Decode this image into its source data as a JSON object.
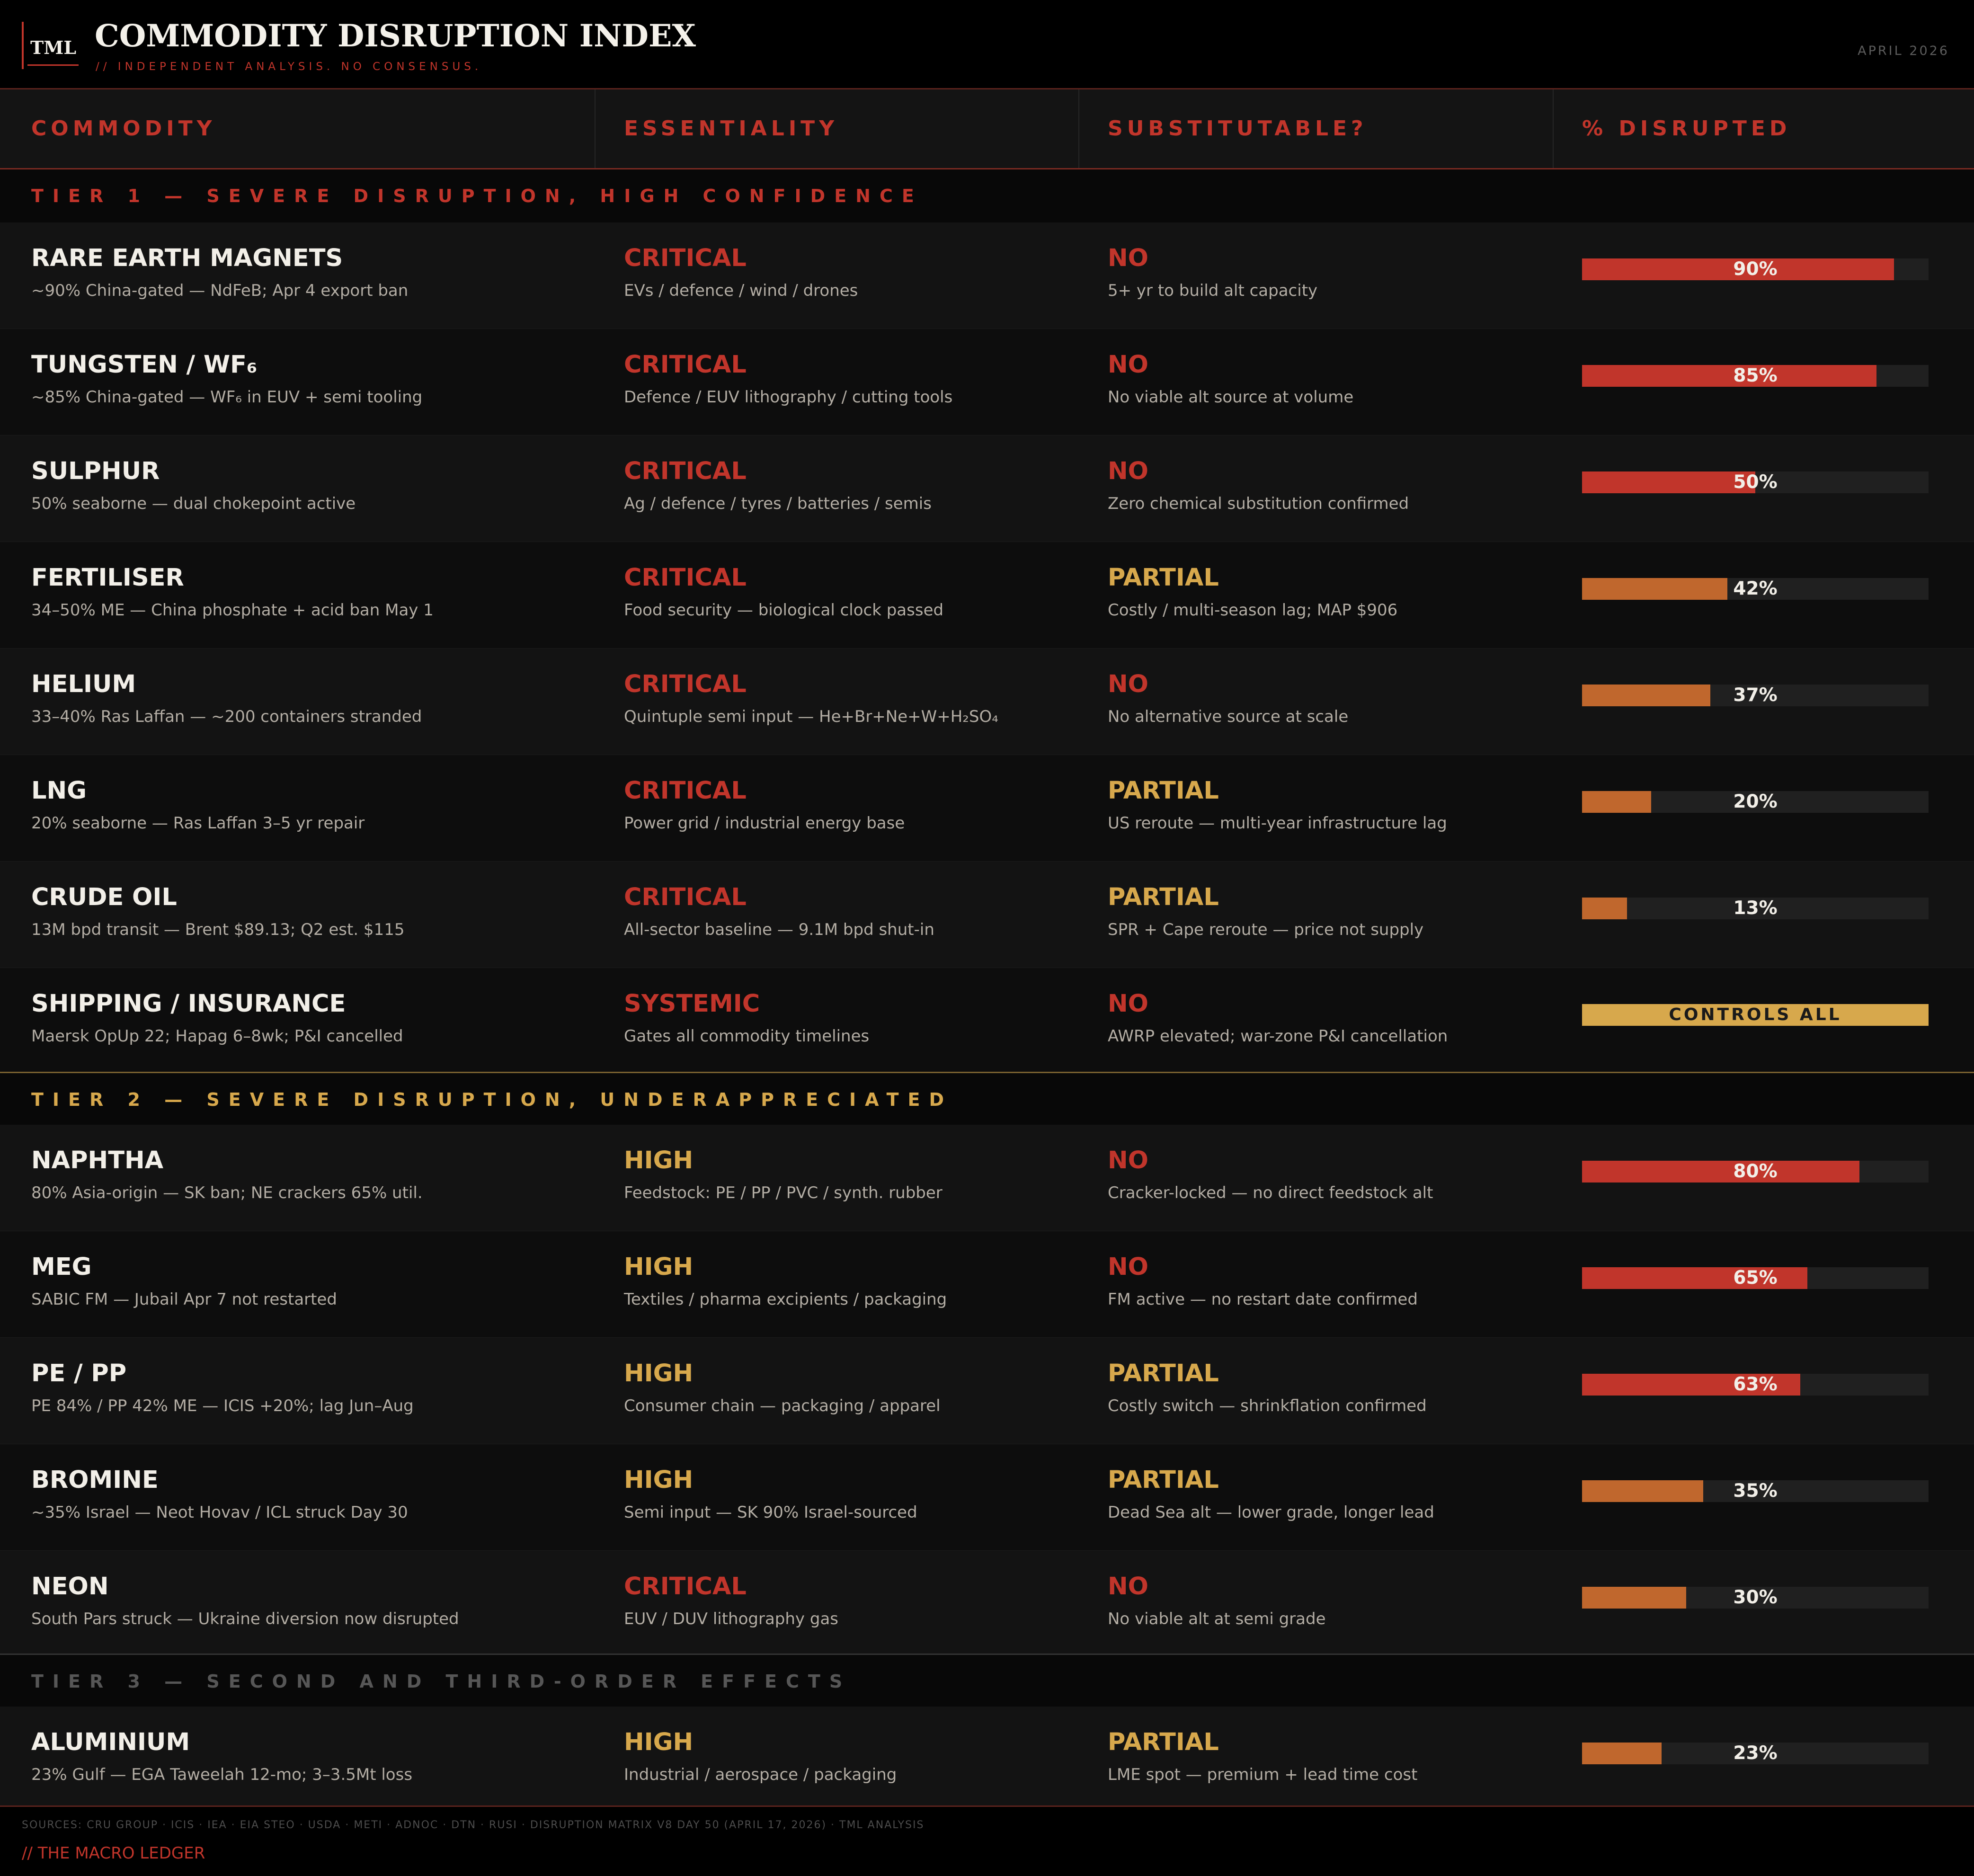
{
  "header": {
    "logo": "TML",
    "title": "COMMODITY DISRUPTION INDEX",
    "subtitle": "// INDEPENDENT ANALYSIS. NO CONSENSUS.",
    "date": "APRIL 2026"
  },
  "columns": [
    "COMMODITY",
    "ESSENTIALITY",
    "SUBSTITUTABLE?",
    "% DISRUPTED"
  ],
  "colors": {
    "red": "#c1352b",
    "orange": "#c0672d",
    "gold": "#d7a84c"
  },
  "tiers": [
    {
      "label": "TIER 1 — SEVERE DISRUPTION, HIGH CONFIDENCE",
      "rows": [
        {
          "name": "RARE EARTH MAGNETS",
          "detail": "~90% China-gated — NdFeB; Apr 4 export ban",
          "essentiality": "CRITICAL",
          "ess_detail": "EVs / defence / wind / drones",
          "substitutable": "NO",
          "sub_detail": "5+ yr to build alt capacity",
          "pct": 90,
          "pct_label": "90%",
          "bar_color": "red"
        },
        {
          "name": "TUNGSTEN / WF₆",
          "detail": "~85% China-gated — WF₆ in EUV + semi tooling",
          "essentiality": "CRITICAL",
          "ess_detail": "Defence / EUV lithography / cutting tools",
          "substitutable": "NO",
          "sub_detail": "No viable alt source at volume",
          "pct": 85,
          "pct_label": "85%",
          "bar_color": "red"
        },
        {
          "name": "SULPHUR",
          "detail": "50% seaborne — dual chokepoint active",
          "essentiality": "CRITICAL",
          "ess_detail": "Ag / defence / tyres / batteries / semis",
          "substitutable": "NO",
          "sub_detail": "Zero chemical substitution confirmed",
          "pct": 50,
          "pct_label": "50%",
          "bar_color": "red"
        },
        {
          "name": "FERTILISER",
          "detail": "34–50% ME — China phosphate + acid ban May 1",
          "essentiality": "CRITICAL",
          "ess_detail": "Food security — biological clock passed",
          "substitutable": "PARTIAL",
          "sub_detail": "Costly / multi-season lag; MAP $906",
          "pct": 42,
          "pct_label": "42%",
          "bar_color": "orange"
        },
        {
          "name": "HELIUM",
          "detail": "33–40% Ras Laffan — ~200 containers stranded",
          "essentiality": "CRITICAL",
          "ess_detail": "Quintuple semi input — He+Br+Ne+W+H₂SO₄",
          "substitutable": "NO",
          "sub_detail": "No alternative source at scale",
          "pct": 37,
          "pct_label": "37%",
          "bar_color": "orange"
        },
        {
          "name": "LNG",
          "detail": "20% seaborne — Ras Laffan 3–5 yr repair",
          "essentiality": "CRITICAL",
          "ess_detail": "Power grid / industrial energy base",
          "substitutable": "PARTIAL",
          "sub_detail": "US reroute — multi-year infrastructure lag",
          "pct": 20,
          "pct_label": "20%",
          "bar_color": "orange"
        },
        {
          "name": "CRUDE OIL",
          "detail": "13M bpd transit — Brent $89.13; Q2 est. $115",
          "essentiality": "CRITICAL",
          "ess_detail": "All-sector baseline — 9.1M bpd shut-in",
          "substitutable": "PARTIAL",
          "sub_detail": "SPR + Cape reroute — price not supply",
          "pct": 13,
          "pct_label": "13%",
          "bar_color": "orange"
        },
        {
          "name": "SHIPPING / INSURANCE",
          "detail": "Maersk OpUp 22; Hapag 6–8wk; P&I cancelled",
          "essentiality": "SYSTEMIC",
          "ess_detail": "Gates all commodity timelines",
          "substitutable": "NO",
          "sub_detail": "AWRP elevated; war-zone P&I cancellation",
          "pct": 100,
          "pct_label": "CONTROLS ALL",
          "bar_color": "gold"
        }
      ]
    },
    {
      "label": "TIER 2 — SEVERE DISRUPTION, UNDERAPPRECIATED",
      "rows": [
        {
          "name": "NAPHTHA",
          "detail": "80% Asia-origin — SK ban; NE crackers 65% util.",
          "essentiality": "HIGH",
          "ess_detail": "Feedstock: PE / PP / PVC / synth. rubber",
          "substitutable": "NO",
          "sub_detail": "Cracker-locked — no direct feedstock alt",
          "pct": 80,
          "pct_label": "80%",
          "bar_color": "red"
        },
        {
          "name": "MEG",
          "detail": "SABIC FM — Jubail Apr 7 not restarted",
          "essentiality": "HIGH",
          "ess_detail": "Textiles / pharma excipients / packaging",
          "substitutable": "NO",
          "sub_detail": "FM active — no restart date confirmed",
          "pct": 65,
          "pct_label": "65%",
          "bar_color": "red"
        },
        {
          "name": "PE / PP",
          "detail": "PE 84% / PP 42% ME — ICIS +20%; lag Jun–Aug",
          "essentiality": "HIGH",
          "ess_detail": "Consumer chain — packaging / apparel",
          "substitutable": "PARTIAL",
          "sub_detail": "Costly switch — shrinkflation confirmed",
          "pct": 63,
          "pct_label": "63%",
          "bar_color": "red"
        },
        {
          "name": "BROMINE",
          "detail": "~35% Israel — Neot Hovav / ICL struck Day 30",
          "essentiality": "HIGH",
          "ess_detail": "Semi input — SK 90% Israel-sourced",
          "substitutable": "PARTIAL",
          "sub_detail": "Dead Sea alt — lower grade, longer lead",
          "pct": 35,
          "pct_label": "35%",
          "bar_color": "orange"
        },
        {
          "name": "NEON",
          "detail": "South Pars struck — Ukraine diversion now disrupted",
          "essentiality": "CRITICAL",
          "ess_detail": "EUV / DUV lithography gas",
          "substitutable": "NO",
          "sub_detail": "No viable alt at semi grade",
          "pct": 30,
          "pct_label": "30%",
          "bar_color": "orange"
        }
      ]
    },
    {
      "label": "TIER 3 — SECOND AND THIRD-ORDER EFFECTS",
      "rows": [
        {
          "name": "ALUMINIUM",
          "detail": "23% Gulf — EGA Taweelah 12-mo; 3–3.5Mt loss",
          "essentiality": "HIGH",
          "ess_detail": "Industrial / aerospace / packaging",
          "substitutable": "PARTIAL",
          "sub_detail": "LME spot — premium + lead time cost",
          "pct": 23,
          "pct_label": "23%",
          "bar_color": "orange"
        }
      ]
    }
  ],
  "footer": {
    "sources": "SOURCES: CRU GROUP · ICIS · IEA · EIA STEO · USDA · METI · ADNOC · DTN · RUSI · DISRUPTION MATRIX V8 DAY 50 (APRIL 17, 2026) · TML ANALYSIS",
    "brand": "// THE MACRO LEDGER"
  }
}
